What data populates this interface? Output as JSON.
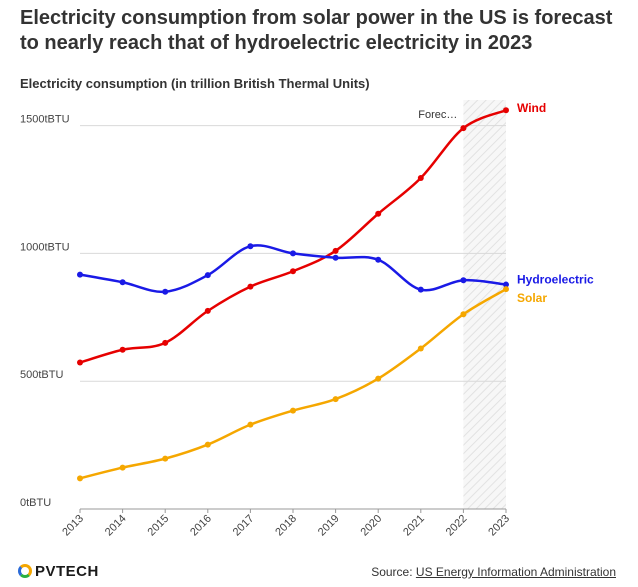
{
  "title": "Electricity consumption from solar power in the US is forecast to nearly reach that of hydroelectric electricity in 2023",
  "subtitle": "Electricity consumption (in trillion British Thermal Units)",
  "forecast_label": "Forec…",
  "footer": {
    "logo_text": "PVTECH",
    "source_prefix": "Source:",
    "source_link": "US Energy Information Administration"
  },
  "colors": {
    "wind": "#e60000",
    "hydro": "#1a1ae6",
    "solar": "#f5a700"
  },
  "chart_data": {
    "type": "line",
    "title": "Electricity consumption from solar power in the US is forecast to nearly reach that of hydroelectric electricity in 2023",
    "ylabel": "Electricity consumption (in trillion British Thermal Units)",
    "x": [
      "2013",
      "2014",
      "2015",
      "2016",
      "2017",
      "2018",
      "2019",
      "2020",
      "2021",
      "2022",
      "2023"
    ],
    "ylim": [
      0,
      1600
    ],
    "yticks": [
      0,
      500,
      1000,
      1500
    ],
    "ytick_labels": [
      "0tBTU",
      "500tBTU",
      "1000tBTU",
      "1500tBTU"
    ],
    "forecast_from": "2022",
    "grid": "horizontal",
    "series": [
      {
        "name": "Wind",
        "color": "#e60000",
        "values": [
          573,
          623,
          650,
          775,
          870,
          930,
          1010,
          1155,
          1295,
          1490,
          1560
        ]
      },
      {
        "name": "Hydroelectric",
        "color": "#1a1ae6",
        "values": [
          917,
          887,
          850,
          915,
          1028,
          1000,
          983,
          975,
          858,
          895,
          878
        ]
      },
      {
        "name": "Solar",
        "color": "#f5a700",
        "values": [
          120,
          162,
          197,
          252,
          330,
          385,
          430,
          510,
          628,
          762,
          860
        ]
      }
    ]
  }
}
